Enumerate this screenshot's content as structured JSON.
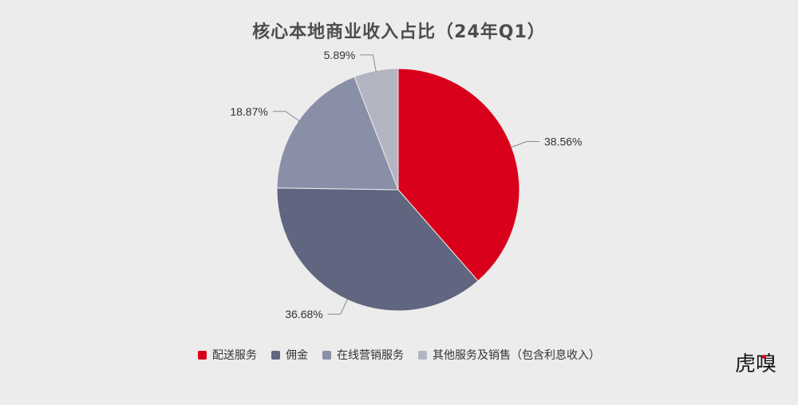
{
  "chart_data": {
    "type": "pie",
    "title": "核心本地商业收入占比（24年Q1）",
    "categories": [
      "配送服务",
      "佣金",
      "在线营销服务",
      "其他服务及销售（包含利息收入）"
    ],
    "values": [
      38.56,
      36.68,
      18.87,
      5.89
    ],
    "labels": [
      "38.56%",
      "36.68%",
      "18.87%",
      "5.89%"
    ],
    "colors": [
      "#d9001b",
      "#60667f",
      "#8a8fa8",
      "#b3b5c3"
    ],
    "start": "12 o'clock",
    "direction": "clockwise",
    "legend": "bottom"
  },
  "brand": {
    "logo_text": "虎嗅",
    "accent": "#d9001b"
  }
}
